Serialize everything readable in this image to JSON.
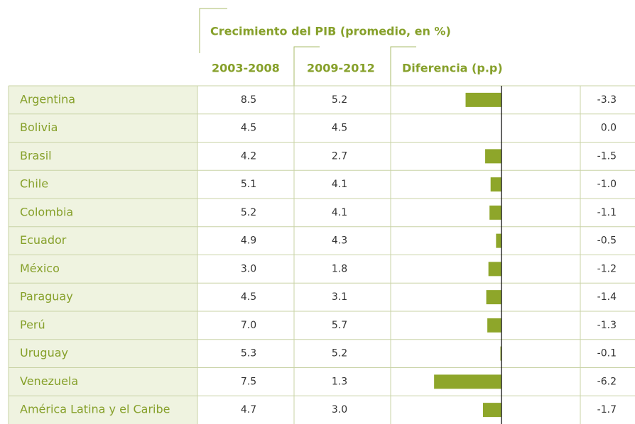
{
  "table": {
    "title": "Crecimiento del PIB (promedio, en %)",
    "columns": [
      "2003-2008",
      "2009-2012",
      "Diferencia (p.p)"
    ],
    "rows": [
      {
        "name": "Argentina",
        "values": [
          "8.5",
          "5.2",
          "-3.3"
        ]
      },
      {
        "name": "Bolivia",
        "values": [
          "4.5",
          "4.5",
          "0.0"
        ]
      },
      {
        "name": "Brasil",
        "values": [
          "4.2",
          "2.7",
          "-1.5"
        ]
      },
      {
        "name": "Chile",
        "values": [
          "5.1",
          "4.1",
          "-1.0"
        ]
      },
      {
        "name": "Colombia",
        "values": [
          "5.2",
          "4.1",
          "-1.1"
        ]
      },
      {
        "name": "Ecuador",
        "values": [
          "4.9",
          "4.3",
          "-0.5"
        ]
      },
      {
        "name": "México",
        "values": [
          "3.0",
          "1.8",
          "-1.2"
        ]
      },
      {
        "name": "Paraguay",
        "values": [
          "4.5",
          "3.1",
          "-1.4"
        ]
      },
      {
        "name": "Perú",
        "values": [
          "7.0",
          "5.7",
          "-1.3"
        ]
      },
      {
        "name": "Uruguay",
        "values": [
          "5.3",
          "5.2",
          "-0.1"
        ]
      },
      {
        "name": "Venezuela",
        "values": [
          "7.5",
          "1.3",
          "-6.2"
        ]
      },
      {
        "name": "América Latina y el Caribe",
        "values": [
          "4.7",
          "3.0",
          "-1.7"
        ]
      }
    ],
    "bar_color": "#8ea62a"
  }
}
